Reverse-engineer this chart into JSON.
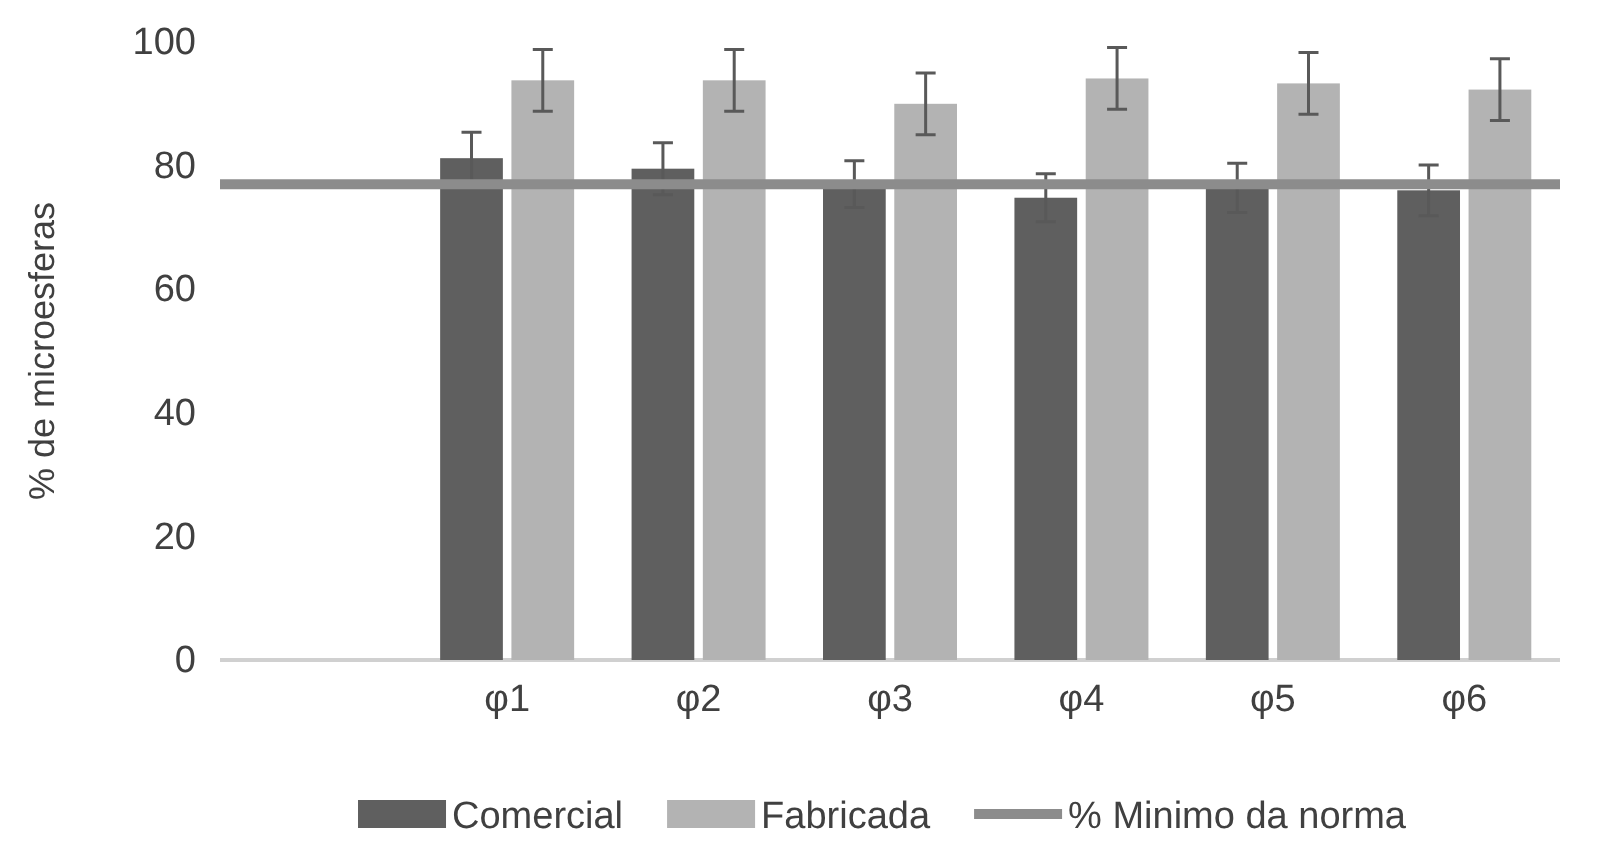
{
  "chart_data": {
    "type": "bar",
    "ylabel": "% de microesferas",
    "categories": [
      null,
      "φ1",
      "φ2",
      "φ3",
      "φ4",
      "φ5",
      "φ6"
    ],
    "series": [
      {
        "name": "Comercial",
        "color": "#5f5f5f",
        "values": [
          null,
          81.2,
          79.5,
          77,
          74.8,
          76.4,
          76
        ],
        "errors": [
          null,
          4.2,
          4.2,
          3.8,
          3.9,
          4,
          4.1
        ]
      },
      {
        "name": "Fabricada",
        "color": "#b3b3b3",
        "values": [
          null,
          93.8,
          93.8,
          90,
          94.1,
          93.3,
          92.3
        ],
        "errors": [
          null,
          5,
          5,
          5,
          5,
          5,
          5
        ]
      }
    ],
    "ref_lines": [
      {
        "axis": "y",
        "value": 77,
        "label": "% Minimo da norma",
        "color": "#8c8c8c"
      }
    ],
    "ylim": [
      0,
      100
    ],
    "yticks": [
      0,
      20,
      40,
      60,
      80,
      100
    ],
    "grid": false,
    "legend": "bottom"
  }
}
